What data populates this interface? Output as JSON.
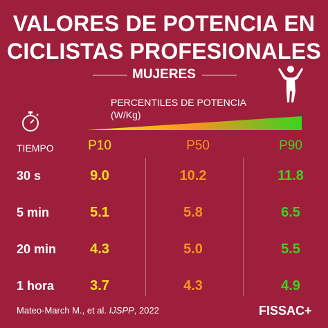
{
  "header": {
    "title_line1": "VALORES DE POTENCIA EN",
    "title_line2": "CICLISTAS PROFESIONALES",
    "subtitle": "MUJERES",
    "percentile_label": "PERCENTILES DE POTENCIA  (W/Kg)"
  },
  "chart_data": {
    "type": "table",
    "row_header": "TIEMPO",
    "columns": [
      "P10",
      "P50",
      "P90"
    ],
    "column_colors": [
      "#f7e21b",
      "#f7931e",
      "#39d41f"
    ],
    "rows": [
      {
        "label": "30 s",
        "values": [
          "9.0",
          "10.2",
          "11.8"
        ]
      },
      {
        "label": "5 min",
        "values": [
          "5.1",
          "5.8",
          "6.5"
        ]
      },
      {
        "label": "20 min",
        "values": [
          "4.3",
          "5.0",
          "5.5"
        ]
      },
      {
        "label": "1 hora",
        "values": [
          "3.7",
          "4.3",
          "4.9"
        ]
      }
    ],
    "gradient_colors": [
      "#f7e21b",
      "#f7931e",
      "#39d41f"
    ]
  },
  "footer": {
    "source_prefix": "Mateo-March M., et al. ",
    "source_journal": "IJSPP",
    "source_suffix": ", 2022",
    "brand": "FISSAC+"
  },
  "icons": {
    "stopwatch": "stopwatch-icon",
    "cyclist": "cyclist-icon"
  },
  "colors": {
    "background": "#9e1f3c",
    "text": "#ffffff"
  }
}
